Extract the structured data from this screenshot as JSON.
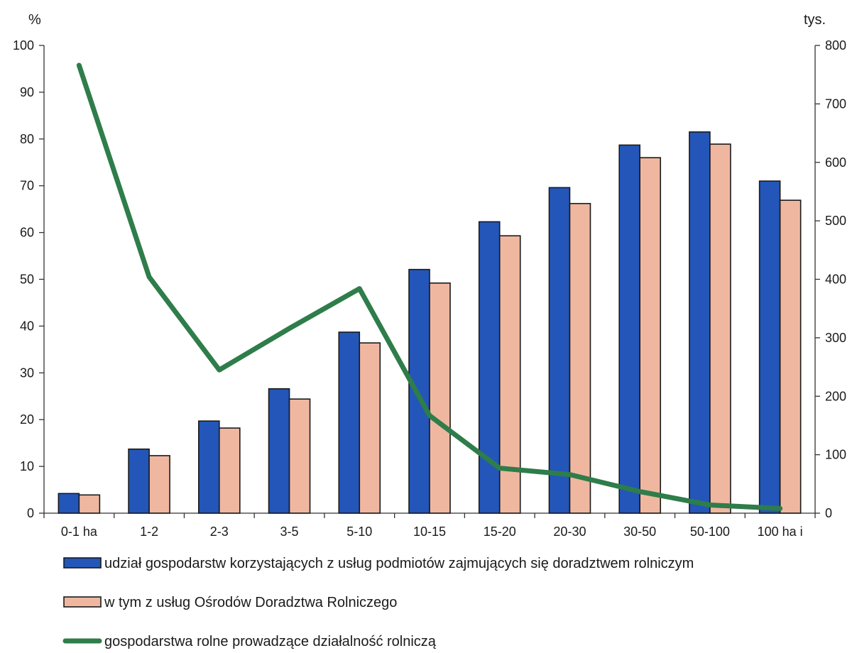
{
  "chart_data": {
    "type": "bar",
    "categories": [
      "0-1 ha",
      "1-2",
      "2-3",
      "3-5",
      "5-10",
      "10-15",
      "15-20",
      "20-30",
      "30-50",
      "50-100",
      "100 ha i"
    ],
    "y_left": {
      "unit": "%",
      "min": 0,
      "max": 100,
      "ticks": [
        0,
        10,
        20,
        30,
        40,
        50,
        60,
        70,
        80,
        90,
        100
      ]
    },
    "y_right": {
      "unit": "tys.",
      "min": 0,
      "max": 800,
      "ticks": [
        0,
        100,
        200,
        300,
        400,
        500,
        600,
        700,
        800
      ]
    },
    "series": [
      {
        "name": "udział gospodarstw korzystających z usług podmiotów zajmujących się doradztwem rolniczym",
        "type": "bar",
        "axis": "left",
        "color": "#2356b8",
        "values": [
          4.2,
          13.7,
          19.7,
          26.6,
          38.7,
          52.1,
          62.3,
          69.6,
          78.7,
          81.5,
          71.0
        ]
      },
      {
        "name": "w tym z usług Ośrodów Doradztwa Rolniczego",
        "type": "bar",
        "axis": "left",
        "color": "#f0b7a0",
        "values": [
          3.9,
          12.3,
          18.2,
          24.4,
          36.4,
          49.2,
          59.3,
          66.2,
          76.0,
          78.9,
          66.9
        ]
      },
      {
        "name": "gospodarstwa rolne prowadzące działalność rolniczą",
        "type": "line",
        "axis": "right",
        "color": "#2e7d4a",
        "values": [
          766,
          404,
          245,
          316,
          384,
          167,
          77,
          66,
          37,
          14,
          8
        ]
      }
    ],
    "grid": false,
    "legend_position": "bottom"
  }
}
